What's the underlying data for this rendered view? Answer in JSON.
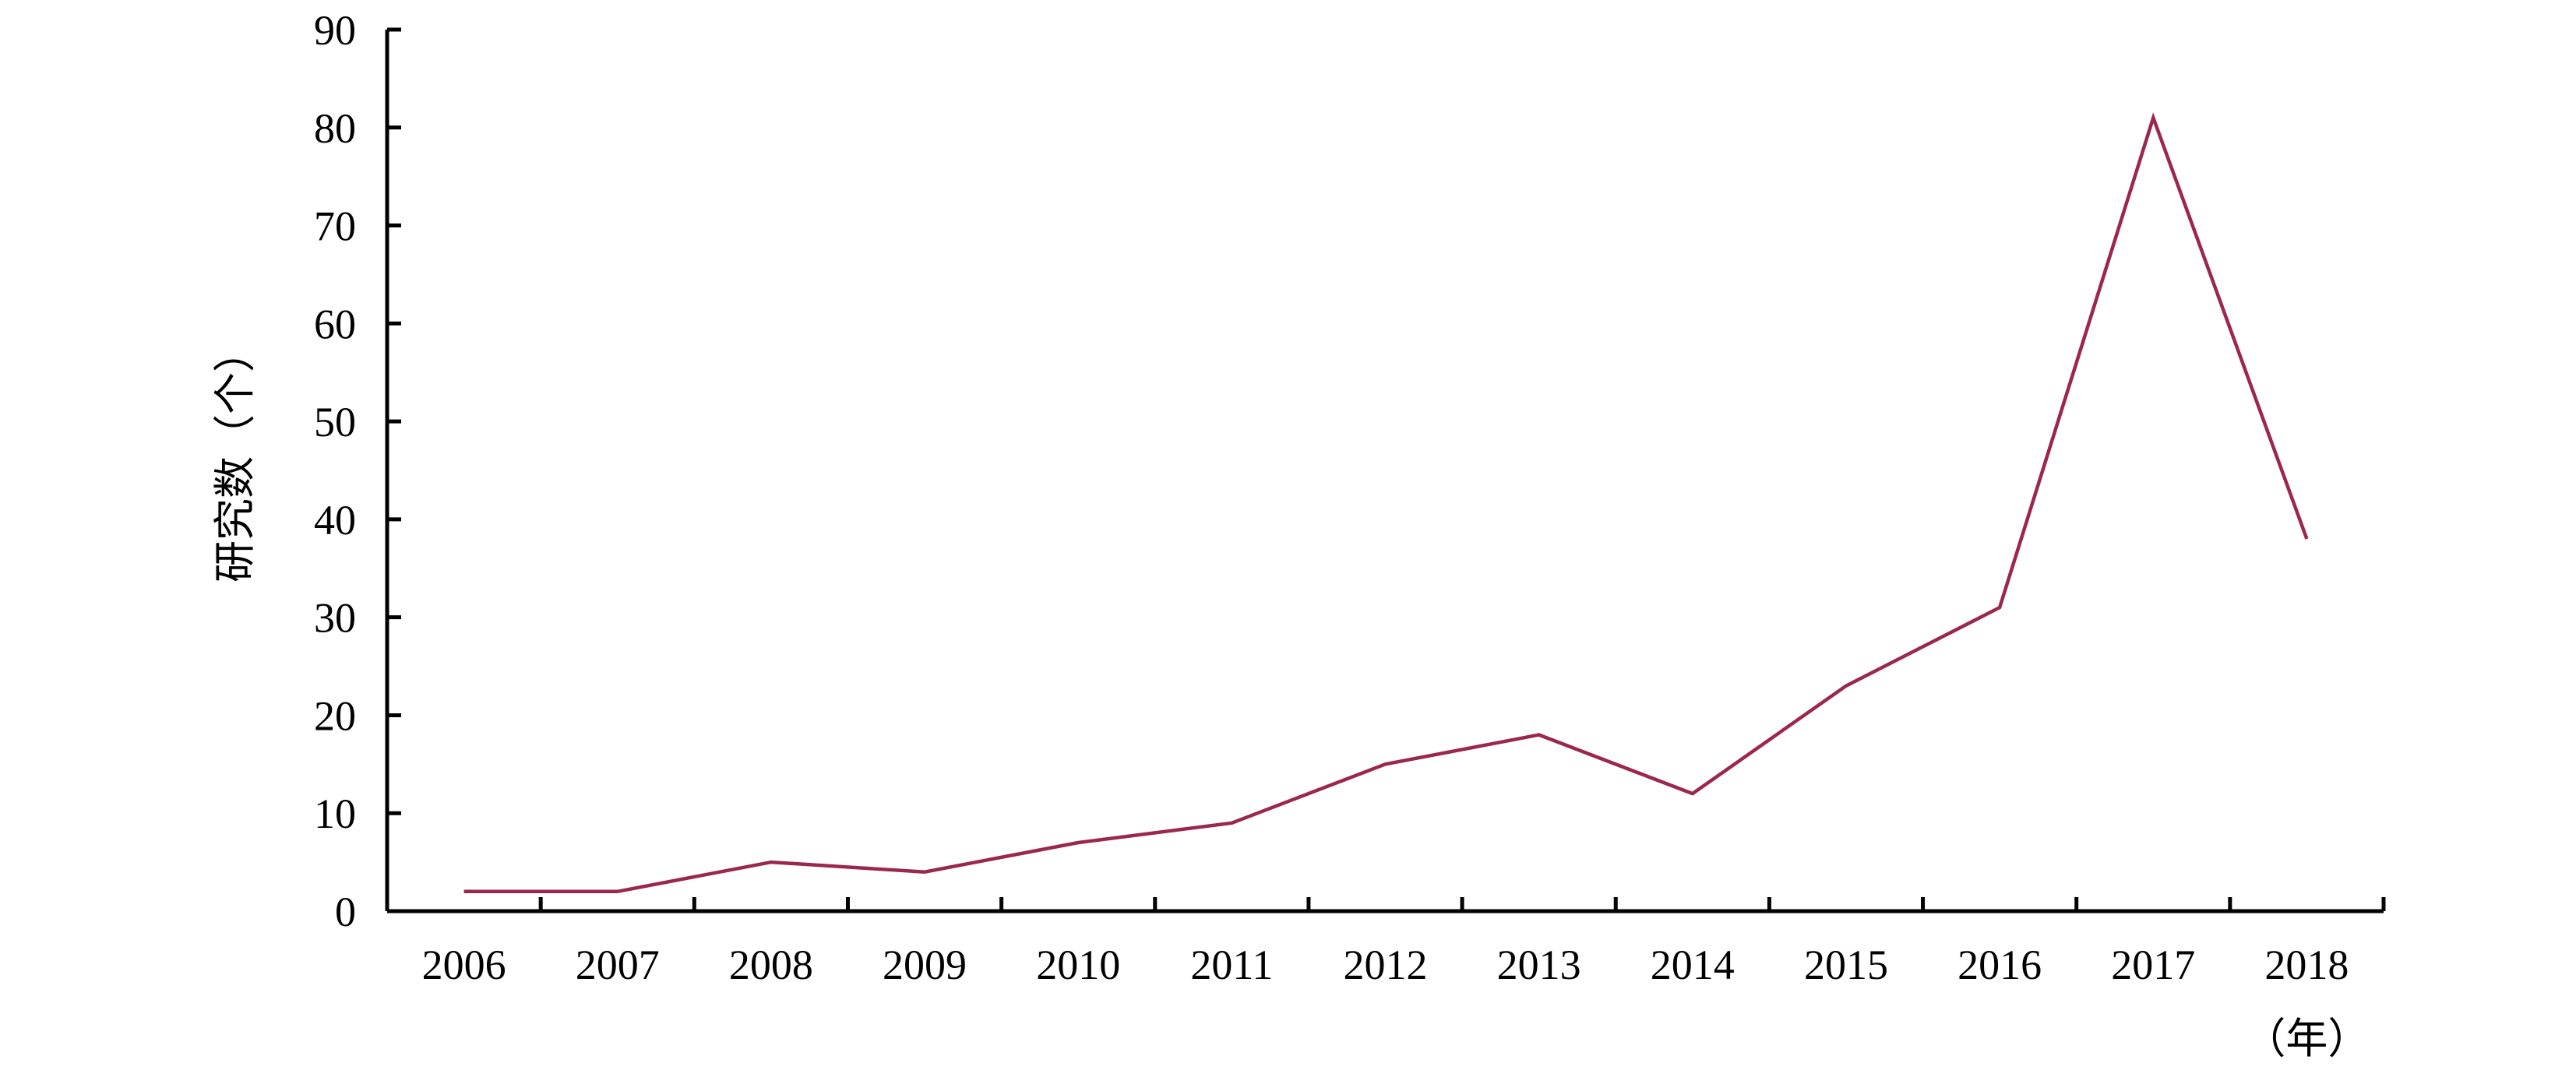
{
  "chart_data": {
    "type": "line",
    "categories": [
      "2006",
      "2007",
      "2008",
      "2009",
      "2010",
      "2011",
      "2012",
      "2013",
      "2014",
      "2015",
      "2016",
      "2017",
      "2018"
    ],
    "series": [
      {
        "values": [
          2,
          2,
          5,
          4,
          7,
          9,
          15,
          18,
          12,
          23,
          31,
          81,
          38
        ]
      }
    ],
    "ylabel": "研究数（个）",
    "xlabel": "（年）",
    "ylim": [
      0,
      90
    ],
    "yticks": [
      0,
      10,
      20,
      30,
      40,
      50,
      60,
      70,
      80,
      90
    ],
    "grid": false,
    "legend": "none",
    "line_color": "#9b2751"
  }
}
